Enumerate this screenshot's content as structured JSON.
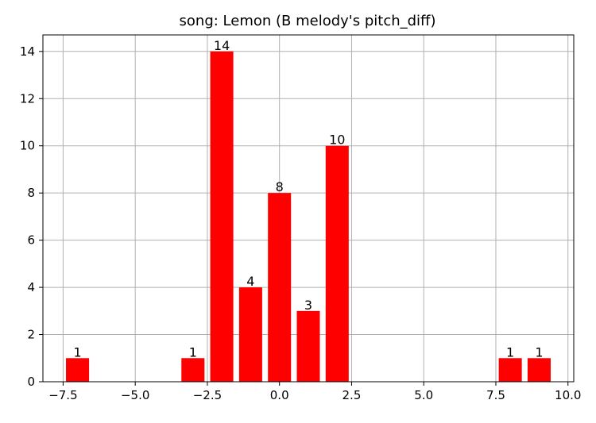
{
  "chart_data": {
    "type": "bar",
    "title": "song: Lemon (B melody's pitch_diff)",
    "xlabel": "",
    "ylabel": "",
    "x": [
      -7,
      -3,
      -2,
      -1,
      0,
      1,
      2,
      8,
      9
    ],
    "values": [
      1,
      1,
      14,
      4,
      8,
      3,
      10,
      1,
      1
    ],
    "data_labels": [
      "1",
      "1",
      "14",
      "4",
      "8",
      "3",
      "10",
      "1",
      "1"
    ],
    "bar_color": "#ff0000",
    "xlim": [
      -8.2,
      10.2
    ],
    "ylim": [
      0,
      14.7
    ],
    "xticks": [
      -7.5,
      -5.0,
      -2.5,
      0.0,
      2.5,
      5.0,
      7.5,
      10.0
    ],
    "xtick_labels": [
      "−7.5",
      "−5.0",
      "−2.5",
      "0.0",
      "2.5",
      "5.0",
      "7.5",
      "10.0"
    ],
    "yticks": [
      0,
      2,
      4,
      6,
      8,
      10,
      12,
      14
    ],
    "ytick_labels": [
      "0",
      "2",
      "4",
      "6",
      "8",
      "10",
      "12",
      "14"
    ],
    "grid": true,
    "legend": "none"
  }
}
